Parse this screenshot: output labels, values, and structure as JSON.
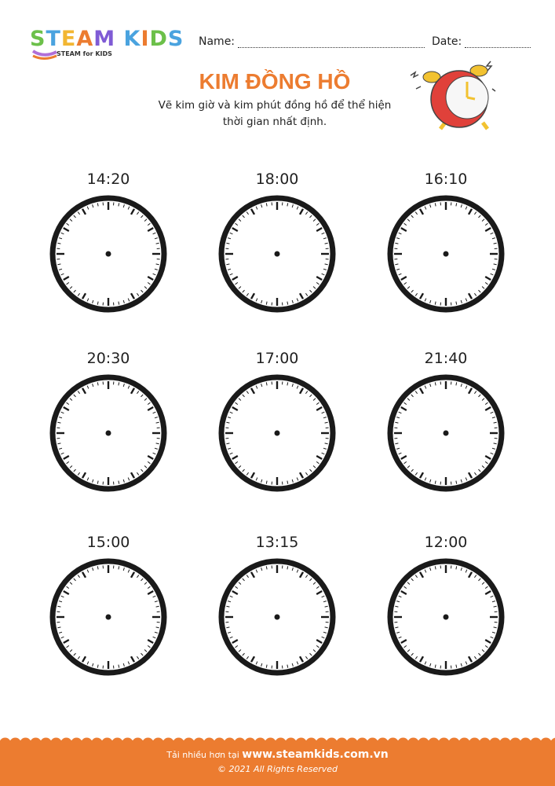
{
  "brand": {
    "logo_text": "STEAM KIDS",
    "tagline": "STEAM for KIDS",
    "logo_colors": [
      "#6cc04a",
      "#4aa3df",
      "#f2b632",
      "#ec7c30",
      "#7f5bd5",
      "#b06fd8",
      "#4aa3df",
      "#ec7c30"
    ]
  },
  "header": {
    "name_label": "Name:",
    "date_label": "Date:"
  },
  "title": "KIM ĐỒNG HỒ",
  "subtitle": "Vẽ kim giờ và kim phút đồng hồ để thể hiện thời gian nhất định.",
  "accent_color": "#ec7c30",
  "clocks": [
    {
      "time": "14:20"
    },
    {
      "time": "18:00"
    },
    {
      "time": "16:10"
    },
    {
      "time": "20:30"
    },
    {
      "time": "17:00"
    },
    {
      "time": "21:40"
    },
    {
      "time": "15:00"
    },
    {
      "time": "13:15"
    },
    {
      "time": "12:00"
    }
  ],
  "footer": {
    "prefix": "Tải nhiều hơn tại",
    "url": "www.steamkids.com.vn",
    "copyright": "© 2021 All Rights Reserved"
  }
}
